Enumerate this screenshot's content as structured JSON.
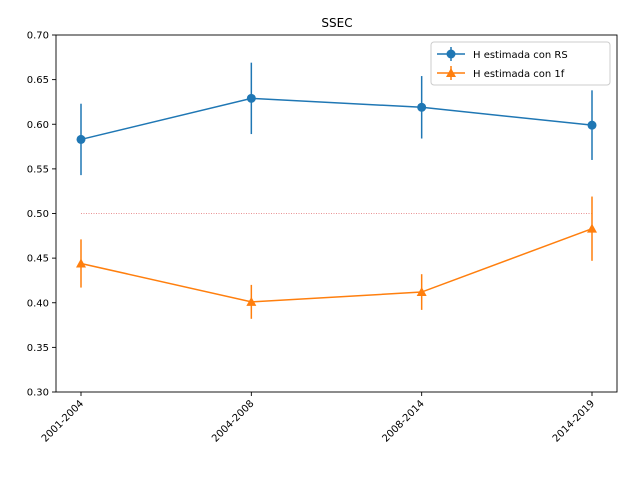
{
  "chart_data": {
    "type": "line",
    "title": "SSEC",
    "xlabel": "",
    "ylabel": "",
    "categories": [
      "2001-2004",
      "2004-2008",
      "2008-2014",
      "2014-2019"
    ],
    "ylim": [
      0.3,
      0.7
    ],
    "yticks": [
      "0.30",
      "0.35",
      "0.40",
      "0.45",
      "0.50",
      "0.55",
      "0.60",
      "0.65",
      "0.70"
    ],
    "grid": false,
    "legend_position": "top-right",
    "series": [
      {
        "name": "H estimada con RS",
        "marker": "circle",
        "color": "#1f77b4",
        "values": [
          0.583,
          0.629,
          0.619,
          0.599
        ],
        "errors": [
          0.04,
          0.04,
          0.035,
          0.039
        ]
      },
      {
        "name": "H estimada con 1f",
        "marker": "triangle",
        "color": "#ff7f0e",
        "values": [
          0.444,
          0.401,
          0.412,
          0.483
        ],
        "errors": [
          0.027,
          0.019,
          0.02,
          0.036
        ]
      }
    ],
    "reference_line": {
      "y": 0.5,
      "color": "#d62728",
      "style": "dotted"
    }
  }
}
